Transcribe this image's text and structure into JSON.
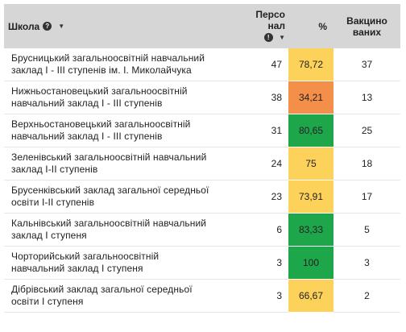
{
  "header": {
    "school": "Школа",
    "school_info_icon": "info-icon",
    "staff_line1": "Персо",
    "staff_line2": "нал",
    "staff_info_icon": "info-icon",
    "percent": "%",
    "vacc_line1": "Вакцино",
    "vacc_line2": "ваних"
  },
  "colors": {
    "high": "#1ea64a",
    "mid": "#fdd25a",
    "low": "#f48f49"
  },
  "chart_data": {
    "type": "table",
    "columns": [
      "Школа",
      "Персонал",
      "%",
      "Вакциновано"
    ],
    "rows": [
      {
        "school": [
          "Брусницький загальноосвітній навчальний",
          "заклад I - III ступенів ім. І. Миколайчука"
        ],
        "staff": "47",
        "percent": "78,72",
        "vaccinated": "37",
        "color": "#fdd25a"
      },
      {
        "school": [
          "Нижньостановецький загальноосвітній",
          "навчальний заклад I - III ступенів"
        ],
        "staff": "38",
        "percent": "34,21",
        "vaccinated": "13",
        "color": "#f48f49"
      },
      {
        "school": [
          "Верхньостановецький загальноосвітній",
          "навчальний заклад I - III ступенів"
        ],
        "staff": "31",
        "percent": "80,65",
        "vaccinated": "25",
        "color": "#1ea64a"
      },
      {
        "school": [
          "Зеленівський загальноосвітній навчальний",
          "заклад I-II ступенів"
        ],
        "staff": "24",
        "percent": "75",
        "vaccinated": "18",
        "color": "#fdd25a"
      },
      {
        "school": [
          "Брусенківський заклад загальної середньої",
          "освіти I-II ступенів"
        ],
        "staff": "23",
        "percent": "73,91",
        "vaccinated": "17",
        "color": "#fdd25a"
      },
      {
        "school": [
          "Кальнівський загальноосвітній навчальний",
          "заклад I ступеня"
        ],
        "staff": "6",
        "percent": "83,33",
        "vaccinated": "5",
        "color": "#1ea64a"
      },
      {
        "school": [
          "Чорторийський загальноосвітній",
          "навчальний заклад I ступеня"
        ],
        "staff": "3",
        "percent": "100",
        "vaccinated": "3",
        "color": "#1ea64a"
      },
      {
        "school": [
          "Дібрівський заклад загальної середньої",
          "освіти I ступеня"
        ],
        "staff": "3",
        "percent": "66,67",
        "vaccinated": "2",
        "color": "#fdd25a"
      }
    ]
  }
}
